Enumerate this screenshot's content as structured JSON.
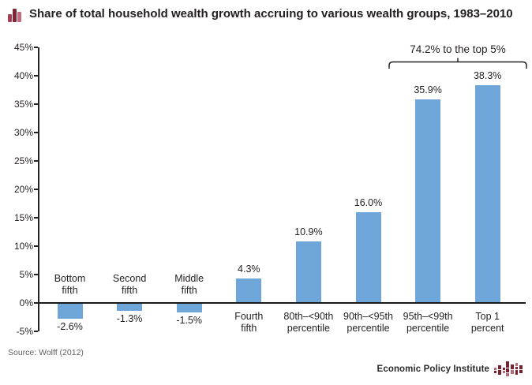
{
  "chart_data": {
    "type": "bar",
    "title": "Share of total household wealth growth accruing to various wealth groups, 1983–2010",
    "categories": [
      "Bottom fifth",
      "Second fifth",
      "Middle fifth",
      "Fourth fifth",
      "80th–<90th percentile",
      "90th–<95th percentile",
      "95th–<99th percentile",
      "Top 1 percent"
    ],
    "category_lines": [
      [
        "Bottom",
        "fifth"
      ],
      [
        "Second",
        "fifth"
      ],
      [
        "Middle",
        "fifth"
      ],
      [
        "Fourth",
        "fifth"
      ],
      [
        "80th–<90th",
        "percentile"
      ],
      [
        "90th–<95th",
        "percentile"
      ],
      [
        "95th–<99th",
        "percentile"
      ],
      [
        "Top 1",
        "percent"
      ]
    ],
    "values": [
      -2.6,
      -1.3,
      -1.5,
      4.3,
      10.9,
      16.0,
      35.9,
      38.3
    ],
    "value_labels": [
      "-2.6%",
      "-1.3%",
      "-1.5%",
      "4.3%",
      "10.9%",
      "16.0%",
      "35.9%",
      "38.3%"
    ],
    "xlabel": "",
    "ylabel": "",
    "ylim": [
      -5,
      45
    ],
    "ytick_step": 5,
    "ytick_labels": [
      "45%",
      "40%",
      "35%",
      "30%",
      "25%",
      "20%",
      "15%",
      "10%",
      "5%",
      "0%",
      "-5%"
    ],
    "grid": false,
    "legend": "none",
    "bar_color": "#6ea6d9",
    "annotation": {
      "text": "74.2% to the top 5%",
      "span_categories": [
        "95th–<99th percentile",
        "Top 1 percent"
      ]
    }
  },
  "source_note": "Source: Wolff (2012)",
  "footer": {
    "brand": "Economic Policy Institute"
  },
  "colors": {
    "bar": "#6ea6d9",
    "axis": "#232323",
    "brand_maroon": "#7e2537",
    "source_gray": "#5f6062"
  }
}
